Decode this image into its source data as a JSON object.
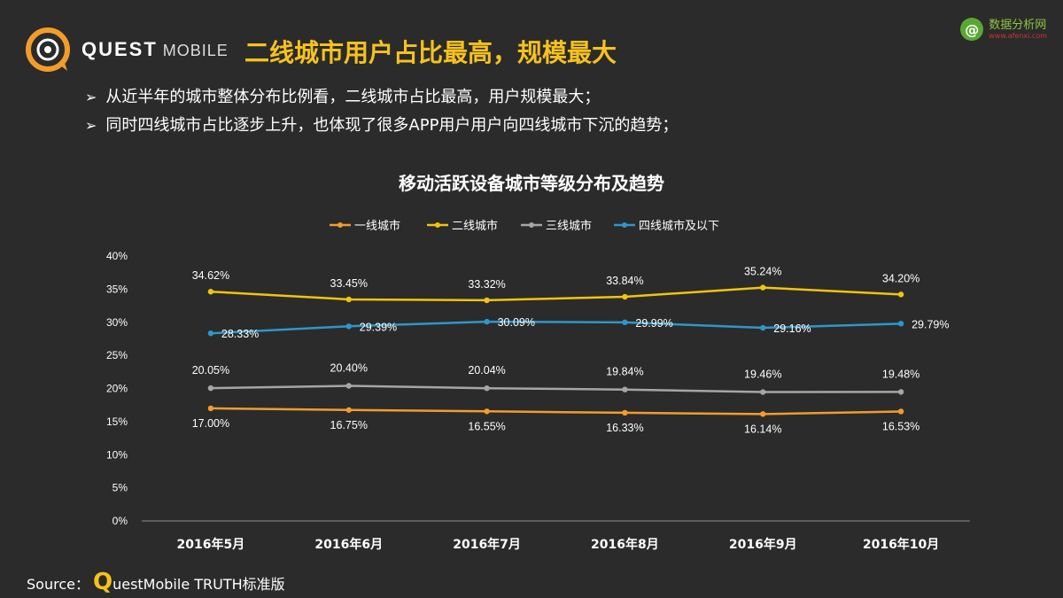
{
  "header": {
    "brand_primary": "QUEST",
    "brand_secondary": "MOBILE",
    "title": "二线城市用户占比最高，规模最大",
    "title_color": "#f6c21c"
  },
  "watermark": {
    "name": "数据分析网",
    "url": "www.afenxi.com",
    "icon_glyph": "@"
  },
  "bullets": [
    "从近半年的城市整体分布比例看，二线城市占比最高，用户规模最大；",
    "同时四线城市占比逐步上升，也体现了很多APP用户用户向四线城市下沉的趋势；"
  ],
  "chart_data": {
    "type": "line",
    "title": "移动活跃设备城市等级分布及趋势",
    "categories": [
      "2016年5月",
      "2016年6月",
      "2016年7月",
      "2016年8月",
      "2016年9月",
      "2016年10月"
    ],
    "ylim": [
      0,
      40
    ],
    "yticks": [
      "0%",
      "5%",
      "10%",
      "15%",
      "20%",
      "25%",
      "30%",
      "35%",
      "40%"
    ],
    "legend_position": "top-center",
    "series": [
      {
        "name": "一线城市",
        "color": "#f39c2c",
        "values": [
          17.0,
          16.75,
          16.55,
          16.33,
          16.14,
          16.53
        ],
        "labels": [
          "17.00%",
          "16.75%",
          "16.55%",
          "16.33%",
          "16.14%",
          "16.53%"
        ]
      },
      {
        "name": "二线城市",
        "color": "#f1c40f",
        "values": [
          34.62,
          33.45,
          33.32,
          33.84,
          35.24,
          34.2
        ],
        "labels": [
          "34.62%",
          "33.45%",
          "33.32%",
          "33.84%",
          "35.24%",
          "34.20%"
        ]
      },
      {
        "name": "三线城市",
        "color": "#a6a6a6",
        "values": [
          20.05,
          20.4,
          20.04,
          19.84,
          19.46,
          19.48
        ],
        "labels": [
          "20.05%",
          "20.40%",
          "20.04%",
          "19.84%",
          "19.46%",
          "19.48%"
        ]
      },
      {
        "name": "四线城市及以下",
        "color": "#2e97c9",
        "values": [
          28.33,
          29.39,
          30.09,
          29.99,
          29.16,
          29.79
        ],
        "labels": [
          "28.33%",
          "29.39%",
          "30.09%",
          "29.99%",
          "29.16%",
          "29.79%"
        ]
      }
    ]
  },
  "source": {
    "prefix": "Source：",
    "q": "Q",
    "rest": "uestMobile TRUTH标准版"
  }
}
